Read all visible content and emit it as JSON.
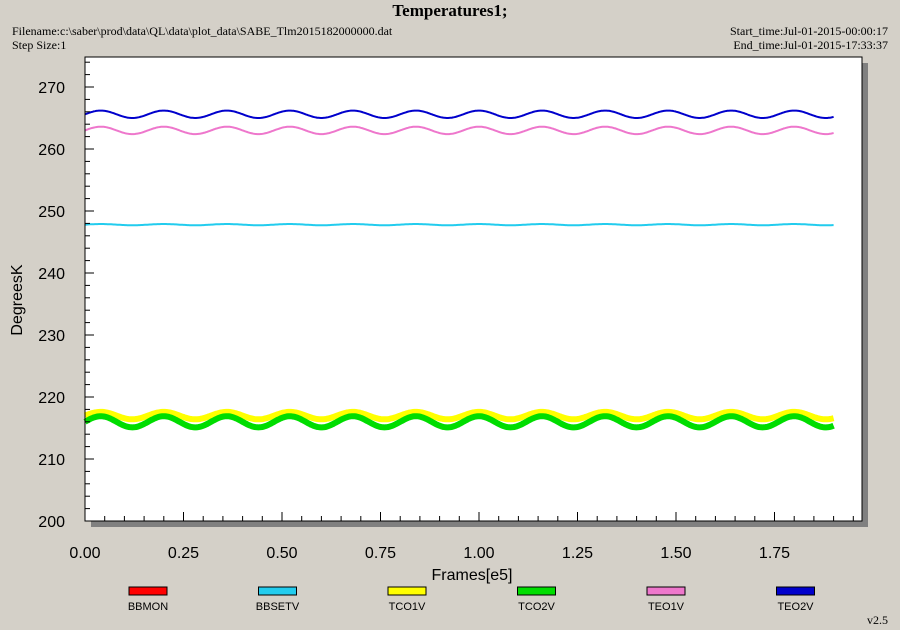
{
  "header": {
    "title": "Temperatures1;",
    "filename": "Filename:c:\\saber\\prod\\data\\QL\\data\\plot_data\\SABE_Tlm2015182000000.dat",
    "step_size": "Step Size:1",
    "start_time": "Start_time:Jul-01-2015-00:00:17",
    "end_time": "End_time:Jul-01-2015-17:33:37",
    "version": "v2.5"
  },
  "chart_data": {
    "type": "line",
    "title": "Temperatures1;",
    "xlabel": "Frames[e5]",
    "ylabel": "DegreesK",
    "xlim": [
      0,
      2.0
    ],
    "ylim": [
      200,
      276
    ],
    "x_ticks": [
      "0.00",
      "0.25",
      "0.50",
      "0.75",
      "1.00",
      "1.25",
      "1.50",
      "1.75"
    ],
    "x_tick_values": [
      0,
      0.25,
      0.5,
      0.75,
      1.0,
      1.25,
      1.5,
      1.75
    ],
    "y_ticks": [
      "200",
      "210",
      "220",
      "230",
      "240",
      "250",
      "260",
      "270"
    ],
    "y_tick_values": [
      200,
      210,
      220,
      230,
      240,
      250,
      260,
      270
    ],
    "legend_position": "bottom",
    "x_range": [
      0,
      1.9
    ],
    "series": [
      {
        "name": "BBMON",
        "color": "#ff0000",
        "values": []
      },
      {
        "name": "BBSETV",
        "color": "#22ccee",
        "base": 247.8,
        "amplitude": 0.1,
        "period": 0.16
      },
      {
        "name": "TCO1V",
        "color": "#ffff00",
        "base": 217.0,
        "amplitude": 0.6,
        "period": 0.16
      },
      {
        "name": "TCO2V",
        "color": "#00dd00",
        "base": 216.0,
        "amplitude": 0.9,
        "period": 0.16
      },
      {
        "name": "TEO1V",
        "color": "#ee77cc",
        "base": 263.0,
        "amplitude": 0.6,
        "period": 0.16
      },
      {
        "name": "TEO2V",
        "color": "#0000cc",
        "base": 265.6,
        "amplitude": 0.6,
        "period": 0.16
      }
    ]
  }
}
